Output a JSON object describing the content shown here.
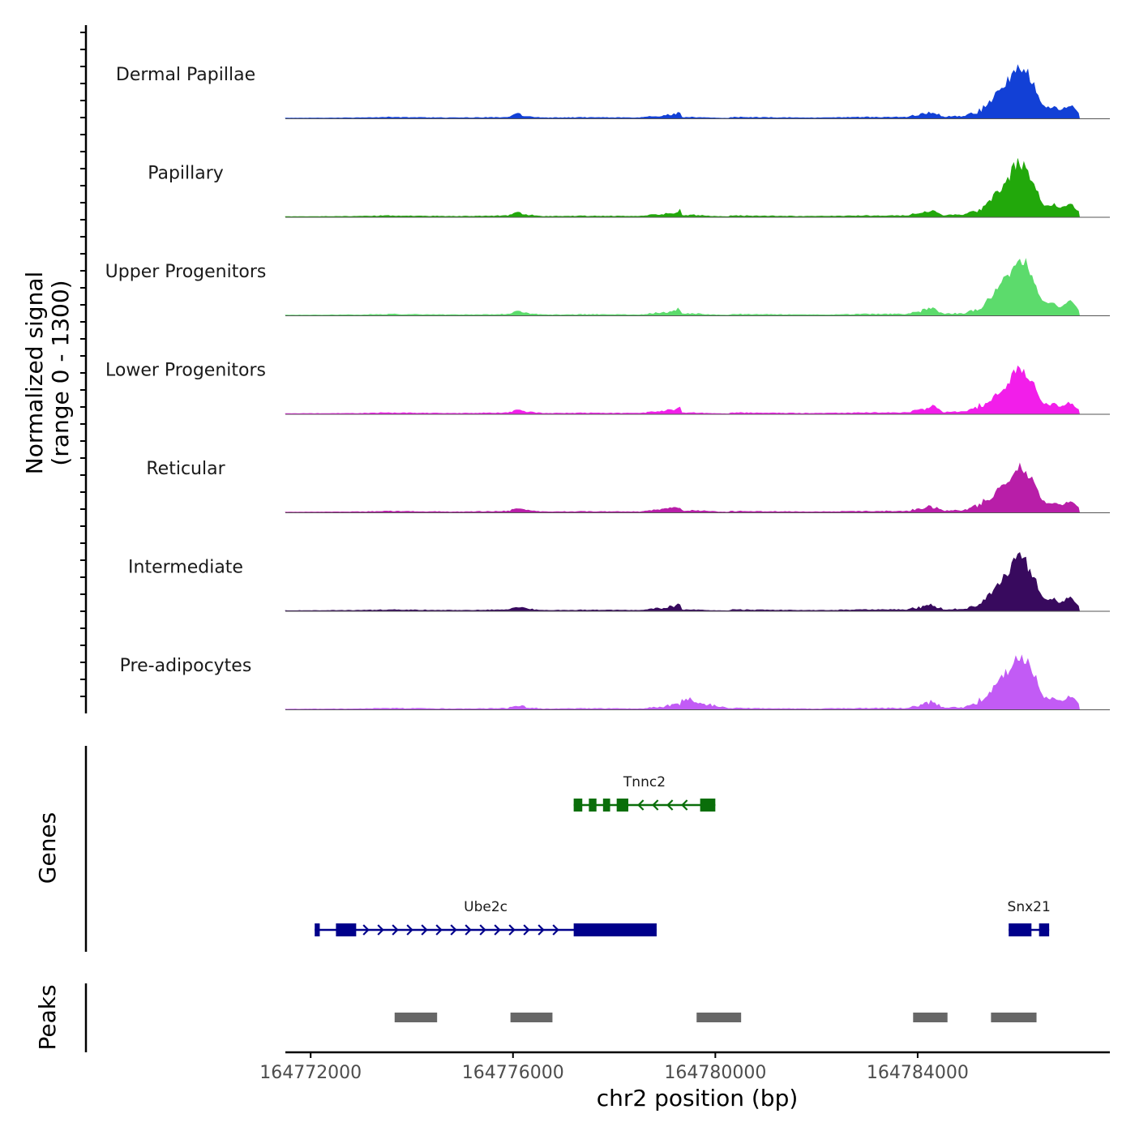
{
  "chart_data": {
    "type": "area",
    "title": "",
    "ylabel_lines": [
      "Normalized signal",
      "(range 0 - 1300)"
    ],
    "xlabel": "chr2 position (bp)",
    "chromosome": "chr2",
    "xlim": [
      164771500,
      164787800
    ],
    "signal_range": [
      0,
      1300
    ],
    "xticks": [
      {
        "value": 164772000,
        "label": "164772000"
      },
      {
        "value": 164776000,
        "label": "164776000"
      },
      {
        "value": 164780000,
        "label": "164780000"
      },
      {
        "value": 164784000,
        "label": "164784000"
      }
    ],
    "track_labels": {
      "genes": "Genes",
      "peaks": "Peaks"
    },
    "signal_shape": {
      "x": [
        164771500,
        164773000,
        164773500,
        164774000,
        164775000,
        164775900,
        164776100,
        164776300,
        164776600,
        164777500,
        164778500,
        164779000,
        164779600,
        164779900,
        164780200,
        164781000,
        164782000,
        164783000,
        164783800,
        164784200,
        164784300,
        164784500,
        164784900,
        164785100,
        164785300,
        164785450,
        164785600,
        164785750,
        164785850,
        164785950,
        164786000,
        164786080,
        164786200,
        164786300,
        164786400,
        164786500,
        164786600,
        164786700,
        164786800,
        164786900,
        164787000,
        164787100,
        164787200,
        164787300,
        164787800
      ],
      "y": [
        0.005,
        0.01,
        0.02,
        0.015,
        0.01,
        0.02,
        0.07,
        0.03,
        0.01,
        0.015,
        0.01,
        0.05,
        0.15,
        0.06,
        0.02,
        0.015,
        0.01,
        0.02,
        0.02,
        0.1,
        0.12,
        0.03,
        0.03,
        0.08,
        0.18,
        0.32,
        0.48,
        0.62,
        0.8,
        0.95,
        1.0,
        0.92,
        0.78,
        0.6,
        0.4,
        0.22,
        0.18,
        0.22,
        0.14,
        0.18,
        0.24,
        0.18,
        0.08,
        0.03,
        0.0
      ]
    },
    "series": [
      {
        "name": "Dermal Papillae",
        "color": "#1240d6",
        "peak": 0.95,
        "pre": 0.12,
        "bump": 0.02
      },
      {
        "name": "Papillary",
        "color": "#22a80b",
        "peak": 0.94,
        "pre": 0.12,
        "bump": 0.03
      },
      {
        "name": "Upper Progenitors",
        "color": "#5cdb6c",
        "peak": 1.0,
        "pre": 0.12,
        "bump": 0.03
      },
      {
        "name": "Lower Progenitors",
        "color": "#f21eea",
        "peak": 0.78,
        "pre": 0.12,
        "bump": 0.02
      },
      {
        "name": "Reticular",
        "color": "#b81ea8",
        "peak": 0.8,
        "pre": 0.1,
        "bump": 0.04
      },
      {
        "name": "Intermediate",
        "color": "#380a5e",
        "peak": 0.96,
        "pre": 0.1,
        "bump": 0.02
      },
      {
        "name": "Pre-adipocytes",
        "color": "#c25bf5",
        "peak": 0.98,
        "pre": 0.12,
        "bump": 0.18
      }
    ],
    "genes": [
      {
        "name": "Tnnc2",
        "color": "#0a6e0a",
        "strand": "-",
        "row": 0,
        "start": 164777200,
        "end": 164780000,
        "exons": [
          [
            164777200,
            164777370
          ],
          [
            164777500,
            164777650
          ],
          [
            164777780,
            164777920
          ],
          [
            164778050,
            164778280
          ],
          [
            164779700,
            164780000
          ]
        ]
      },
      {
        "name": "Ube2c",
        "color": "#00008b",
        "strand": "+",
        "row": 1,
        "start": 164772080,
        "end": 164778840,
        "exons": [
          [
            164772080,
            164772180
          ],
          [
            164772500,
            164772900
          ],
          [
            164777200,
            164778840
          ]
        ]
      },
      {
        "name": "Snx21",
        "color": "#00008b",
        "strand": "+",
        "row": 1,
        "start": 164785800,
        "end": 164786600,
        "exons": [
          [
            164785800,
            164786250
          ],
          [
            164786400,
            164786600
          ]
        ]
      }
    ],
    "peaks": [
      {
        "start": 164773660,
        "end": 164774500
      },
      {
        "start": 164775950,
        "end": 164776780
      },
      {
        "start": 164779630,
        "end": 164780510
      },
      {
        "start": 164783910,
        "end": 164784590
      },
      {
        "start": 164785450,
        "end": 164786350
      }
    ]
  }
}
